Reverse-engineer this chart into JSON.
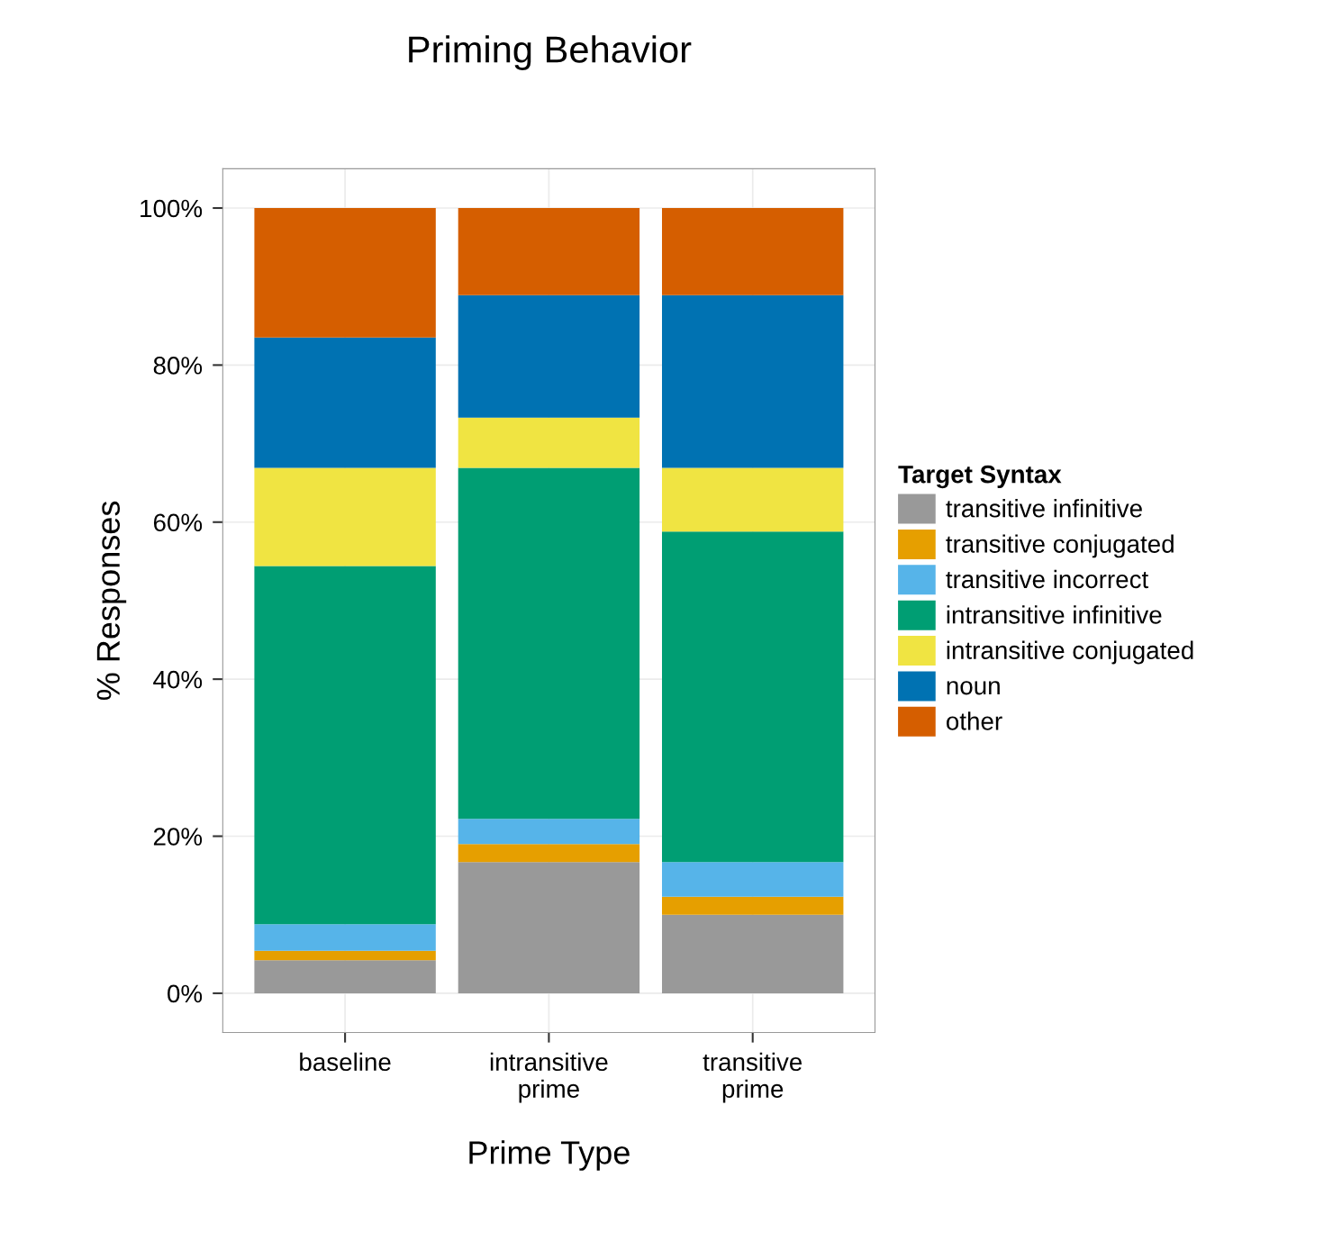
{
  "chart_data": {
    "type": "bar",
    "title": "Priming Behavior",
    "xlabel": "Prime Type",
    "ylabel": "% Responses",
    "legend_title": "Target Syntax",
    "categories": [
      "baseline",
      "intransitive\nprime",
      "transitive\nprime"
    ],
    "stacked": true,
    "series": [
      {
        "name": "transitive infinitive",
        "color": "#999999",
        "values": [
          4.2,
          16.7,
          10.0
        ]
      },
      {
        "name": "transitive conjugated",
        "color": "#e69f00",
        "values": [
          1.2,
          2.3,
          2.3
        ]
      },
      {
        "name": "transitive incorrect",
        "color": "#56b4e9",
        "values": [
          3.4,
          3.2,
          4.4
        ]
      },
      {
        "name": "intransitive infinitive",
        "color": "#009e73",
        "values": [
          45.6,
          44.7,
          42.1
        ]
      },
      {
        "name": "intransitive conjugated",
        "color": "#f0e442",
        "values": [
          12.5,
          6.4,
          8.1
        ]
      },
      {
        "name": "noun",
        "color": "#0072b2",
        "values": [
          16.6,
          15.6,
          22.0
        ]
      },
      {
        "name": "other",
        "color": "#d55e00",
        "values": [
          16.5,
          11.1,
          11.1
        ]
      }
    ],
    "ylim": [
      -5,
      105
    ],
    "yticks": [
      {
        "value": 0,
        "label": "0%"
      },
      {
        "value": 20,
        "label": "20%"
      },
      {
        "value": 40,
        "label": "40%"
      },
      {
        "value": 60,
        "label": "60%"
      },
      {
        "value": 80,
        "label": "80%"
      },
      {
        "value": 100,
        "label": "100%"
      }
    ],
    "grid": true,
    "legend": "right"
  }
}
